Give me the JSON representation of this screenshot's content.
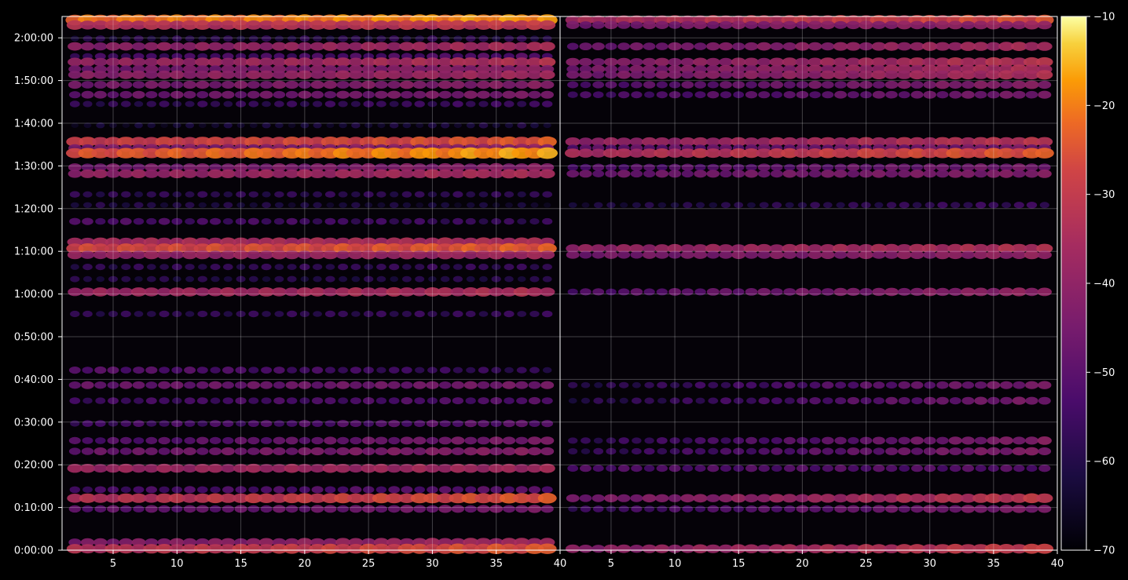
{
  "chart_data": {
    "type": "heatmap",
    "title": "",
    "colormap": "inferno",
    "background": "#000000",
    "grid": true,
    "y_axis": {
      "label": "",
      "range_seconds": [
        0,
        7500
      ],
      "ticks": [
        {
          "value": 0,
          "label": "0:00:00"
        },
        {
          "value": 600,
          "label": "0:10:00"
        },
        {
          "value": 1200,
          "label": "0:20:00"
        },
        {
          "value": 1800,
          "label": "0:30:00"
        },
        {
          "value": 2400,
          "label": "0:40:00"
        },
        {
          "value": 3000,
          "label": "0:50:00"
        },
        {
          "value": 3600,
          "label": "1:00:00"
        },
        {
          "value": 4200,
          "label": "1:10:00"
        },
        {
          "value": 4800,
          "label": "1:20:00"
        },
        {
          "value": 5400,
          "label": "1:30:00"
        },
        {
          "value": 6000,
          "label": "1:40:00"
        },
        {
          "value": 6600,
          "label": "1:50:00"
        },
        {
          "value": 7200,
          "label": "2:00:00"
        }
      ]
    },
    "panels": [
      {
        "name": "",
        "x_range": [
          1,
          40
        ],
        "x_ticks": [
          5,
          10,
          15,
          20,
          25,
          30,
          35,
          40
        ],
        "bands": [
          {
            "t": 7450,
            "level": -22,
            "slope": 0.3
          },
          {
            "t": 7380,
            "level": -34,
            "slope": 0.2
          },
          {
            "t": 7190,
            "level": -60,
            "slope": 0.1
          },
          {
            "t": 7080,
            "level": -42,
            "slope": 0.5
          },
          {
            "t": 6940,
            "level": -55,
            "slope": 0.3
          },
          {
            "t": 6860,
            "level": -40,
            "slope": 0.5
          },
          {
            "t": 6760,
            "level": -46,
            "slope": 0.4
          },
          {
            "t": 6680,
            "level": -42,
            "slope": 0.4
          },
          {
            "t": 6540,
            "level": -46,
            "slope": 0.3
          },
          {
            "t": 6400,
            "level": -48,
            "slope": 0.3
          },
          {
            "t": 6270,
            "level": -58,
            "slope": 0.2
          },
          {
            "t": 5970,
            "level": -64,
            "slope": 0.2
          },
          {
            "t": 5740,
            "level": -30,
            "slope": 0.4
          },
          {
            "t": 5650,
            "level": -45,
            "slope": 0.3
          },
          {
            "t": 5580,
            "level": -26,
            "slope": 0.7
          },
          {
            "t": 5380,
            "level": -46,
            "slope": 0.3
          },
          {
            "t": 5290,
            "level": -40,
            "slope": 0.4
          },
          {
            "t": 5000,
            "level": -58,
            "slope": 0.0
          },
          {
            "t": 4850,
            "level": -60,
            "slope": -0.3
          },
          {
            "t": 4620,
            "level": -52,
            "slope": -0.4
          },
          {
            "t": 4330,
            "level": -36,
            "slope": 0.1
          },
          {
            "t": 4240,
            "level": -28,
            "slope": 0.3
          },
          {
            "t": 4150,
            "level": -40,
            "slope": 0.2
          },
          {
            "t": 3980,
            "level": -58,
            "slope": 0.1
          },
          {
            "t": 3810,
            "level": -60,
            "slope": 0.0
          },
          {
            "t": 3630,
            "level": -38,
            "slope": 0.3
          },
          {
            "t": 3320,
            "level": -58,
            "slope": 0.1
          },
          {
            "t": 2530,
            "level": -50,
            "slope": -0.6
          },
          {
            "t": 2320,
            "level": -48,
            "slope": 0.2
          },
          {
            "t": 2100,
            "level": -55,
            "slope": 0.3
          },
          {
            "t": 1780,
            "level": -55,
            "slope": 0.4
          },
          {
            "t": 1540,
            "level": -52,
            "slope": 0.6
          },
          {
            "t": 1390,
            "level": -48,
            "slope": 0.5
          },
          {
            "t": 1150,
            "level": -38,
            "slope": 0.1
          },
          {
            "t": 850,
            "level": -54,
            "slope": 0.3
          },
          {
            "t": 730,
            "level": -34,
            "slope": 0.7
          },
          {
            "t": 580,
            "level": -50,
            "slope": 0.4
          },
          {
            "t": 110,
            "level": -44,
            "slope": 0.6
          },
          {
            "t": 20,
            "level": -34,
            "slope": 0.7
          }
        ]
      },
      {
        "name": "",
        "x_range": [
          1,
          40
        ],
        "x_ticks": [
          5,
          10,
          15,
          20,
          25,
          30,
          35,
          40
        ],
        "bands": [
          {
            "t": 7450,
            "level": -36,
            "slope": 0.8
          },
          {
            "t": 7380,
            "level": -46,
            "slope": 0.5
          },
          {
            "t": 7080,
            "level": -48,
            "slope": 1.0
          },
          {
            "t": 6860,
            "level": -44,
            "slope": 0.9
          },
          {
            "t": 6760,
            "level": -46,
            "slope": 0.9
          },
          {
            "t": 6680,
            "level": -46,
            "slope": 0.9
          },
          {
            "t": 6540,
            "level": -52,
            "slope": 0.8
          },
          {
            "t": 6400,
            "level": -54,
            "slope": 0.7
          },
          {
            "t": 5740,
            "level": -40,
            "slope": 0.6
          },
          {
            "t": 5650,
            "level": -50,
            "slope": 0.4
          },
          {
            "t": 5580,
            "level": -36,
            "slope": 0.9
          },
          {
            "t": 5380,
            "level": -52,
            "slope": 0.5
          },
          {
            "t": 5290,
            "level": -48,
            "slope": 0.4
          },
          {
            "t": 4850,
            "level": -62,
            "slope": 0.5
          },
          {
            "t": 4240,
            "level": -40,
            "slope": 0.5
          },
          {
            "t": 4150,
            "level": -46,
            "slope": 0.5
          },
          {
            "t": 3630,
            "level": -52,
            "slope": 1.0
          },
          {
            "t": 2320,
            "level": -60,
            "slope": 1.2
          },
          {
            "t": 2100,
            "level": -60,
            "slope": 1.2
          },
          {
            "t": 1540,
            "level": -58,
            "slope": 1.2
          },
          {
            "t": 1390,
            "level": -58,
            "slope": 1.2
          },
          {
            "t": 1150,
            "level": -52,
            "slope": 0.1
          },
          {
            "t": 730,
            "level": -46,
            "slope": 1.2
          },
          {
            "t": 580,
            "level": -56,
            "slope": 1.0
          },
          {
            "t": 20,
            "level": -42,
            "slope": 1.0
          }
        ]
      }
    ],
    "colorbar": {
      "range": [
        -70,
        -10
      ],
      "ticks": [
        {
          "value": -10,
          "label": "−10"
        },
        {
          "value": -20,
          "label": "−20"
        },
        {
          "value": -30,
          "label": "−30"
        },
        {
          "value": -40,
          "label": "−40"
        },
        {
          "value": -50,
          "label": "−50"
        },
        {
          "value": -60,
          "label": "−60"
        },
        {
          "value": -70,
          "label": "−70"
        }
      ]
    }
  }
}
